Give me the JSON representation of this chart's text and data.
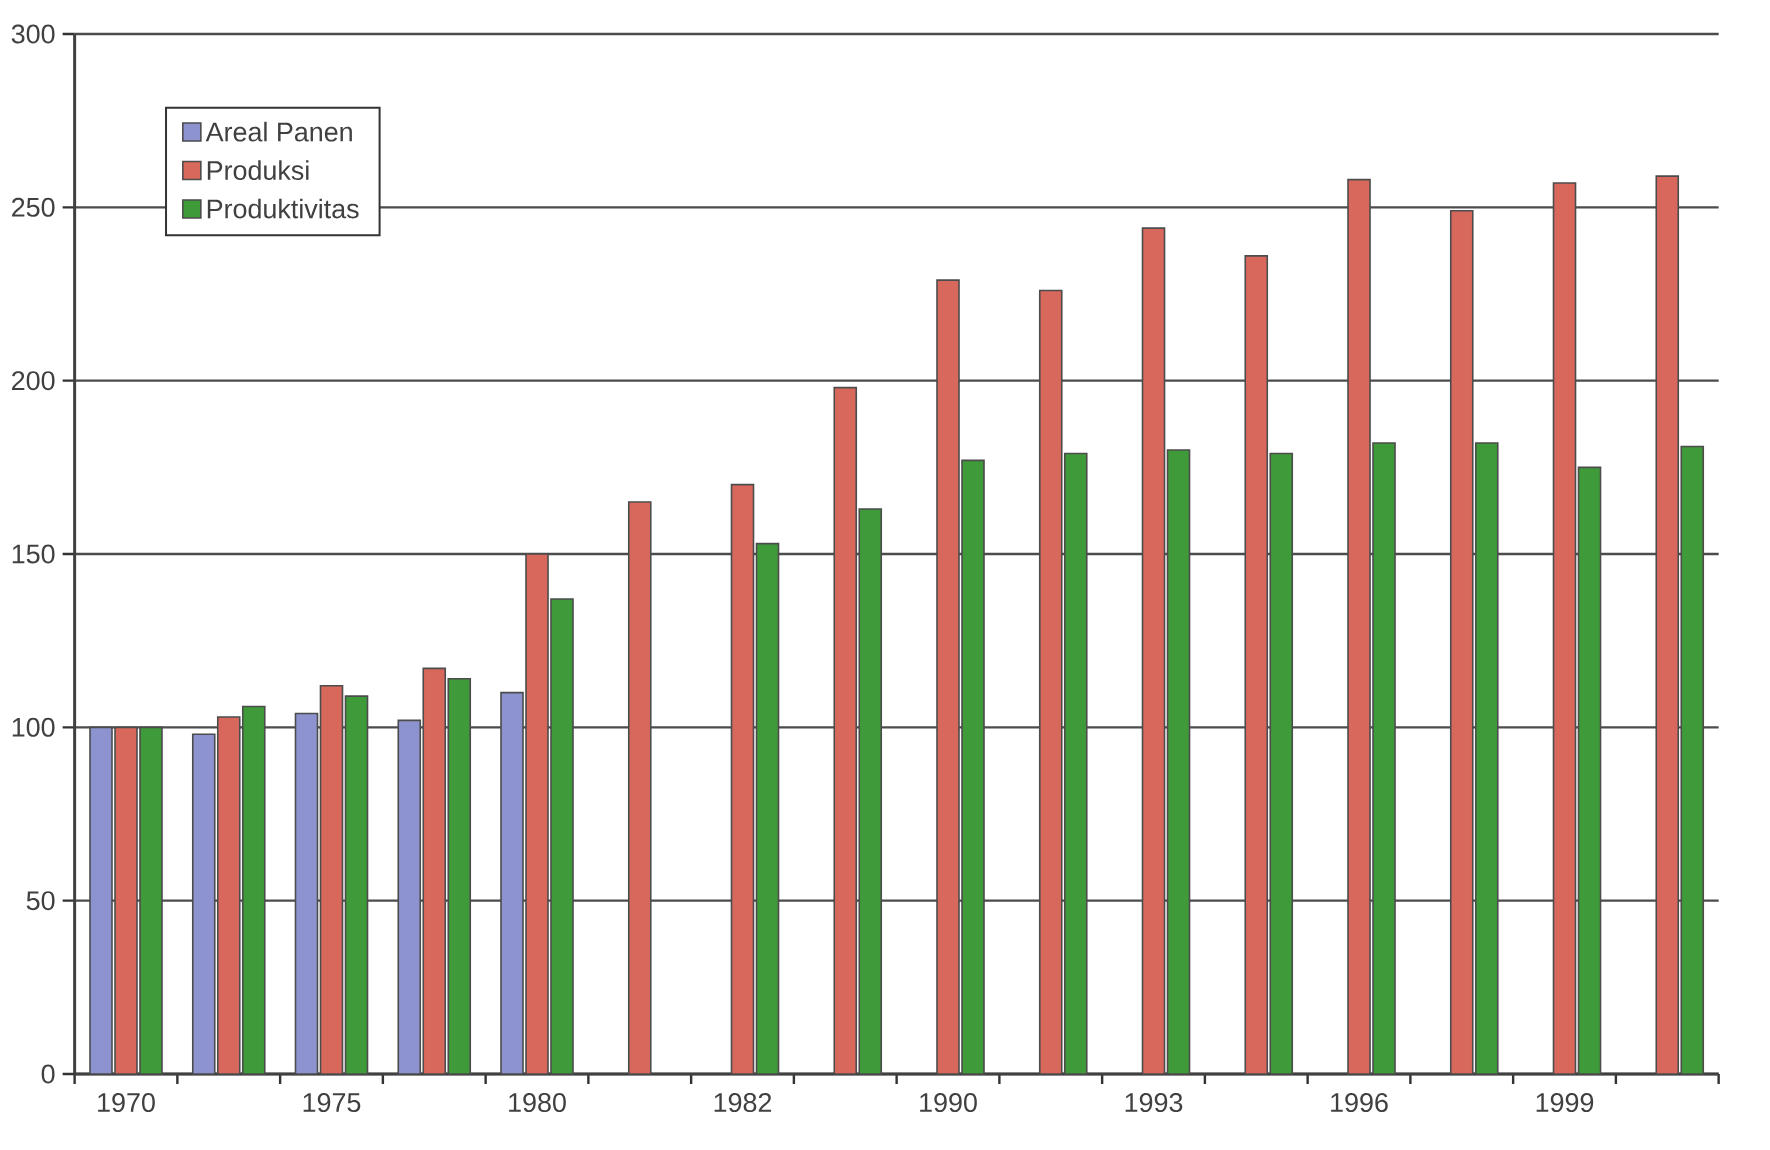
{
  "chart_data": {
    "type": "bar",
    "categories": [
      "1970",
      null,
      "1975",
      null,
      "1980",
      null,
      "1982",
      null,
      "1990",
      null,
      "1993",
      null,
      "1996",
      null,
      "1999",
      null
    ],
    "series": [
      {
        "name": "Areal Panen",
        "color": "#8d93cf",
        "values": [
          100,
          98,
          104,
          102,
          110,
          null,
          null,
          null,
          null,
          null,
          null,
          null,
          null,
          null,
          null,
          null
        ]
      },
      {
        "name": "Produksi",
        "color": "#d9685c",
        "values": [
          100,
          103,
          112,
          117,
          150,
          165,
          170,
          198,
          229,
          226,
          244,
          236,
          258,
          249,
          257,
          259
        ]
      },
      {
        "name": "Produktivitas",
        "color": "#3f9a3a",
        "values": [
          100,
          106,
          109,
          114,
          137,
          null,
          153,
          163,
          177,
          179,
          180,
          179,
          182,
          182,
          175,
          181
        ]
      }
    ],
    "ylim": [
      0,
      300
    ],
    "yticks": [
      0,
      50,
      100,
      150,
      200,
      250,
      300
    ],
    "grid": "y",
    "legend": "top left"
  }
}
